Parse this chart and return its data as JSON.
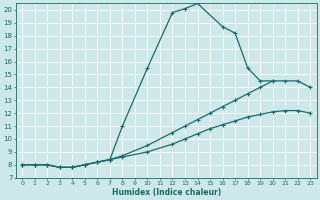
{
  "xlabel": "Humidex (Indice chaleur)",
  "bg_color": "#cce8e8",
  "line_color": "#1a6b6b",
  "grid_color": "#ffffff",
  "xlim": [
    -0.5,
    23.5
  ],
  "ylim": [
    7,
    20.5
  ],
  "xticks": [
    0,
    1,
    2,
    3,
    4,
    5,
    6,
    7,
    8,
    9,
    10,
    11,
    12,
    13,
    14,
    15,
    16,
    17,
    18,
    19,
    20,
    21,
    22,
    23
  ],
  "yticks": [
    7,
    8,
    9,
    10,
    11,
    12,
    13,
    14,
    15,
    16,
    17,
    18,
    19,
    20
  ],
  "line1_x": [
    0,
    1,
    2,
    3,
    4,
    5,
    6,
    7,
    8,
    10,
    12,
    13,
    14,
    16,
    17,
    18,
    19,
    20
  ],
  "line1_y": [
    8,
    8,
    8,
    7.8,
    7.8,
    8.0,
    8.2,
    8.4,
    11.0,
    15.5,
    19.8,
    20.1,
    20.5,
    18.7,
    18.2,
    15.5,
    14.5,
    14.5
  ],
  "line2_x": [
    0,
    1,
    2,
    3,
    4,
    5,
    6,
    7,
    8,
    10,
    12,
    13,
    14,
    15,
    16,
    17,
    18,
    19,
    20,
    21,
    22,
    23
  ],
  "line2_y": [
    8,
    8,
    8,
    7.8,
    7.8,
    8.0,
    8.2,
    8.4,
    8.7,
    9.5,
    10.5,
    11.0,
    11.5,
    12.0,
    12.5,
    13.0,
    13.5,
    14.0,
    14.5,
    14.5,
    14.5,
    14.0
  ],
  "line3_x": [
    0,
    1,
    2,
    3,
    4,
    5,
    6,
    7,
    8,
    10,
    12,
    13,
    14,
    15,
    16,
    17,
    18,
    19,
    20,
    21,
    22,
    23
  ],
  "line3_y": [
    8,
    8,
    8,
    7.8,
    7.8,
    8.0,
    8.2,
    8.4,
    8.6,
    9.0,
    9.6,
    10.0,
    10.4,
    10.8,
    11.1,
    11.4,
    11.7,
    11.9,
    12.1,
    12.2,
    12.2,
    12.0
  ]
}
